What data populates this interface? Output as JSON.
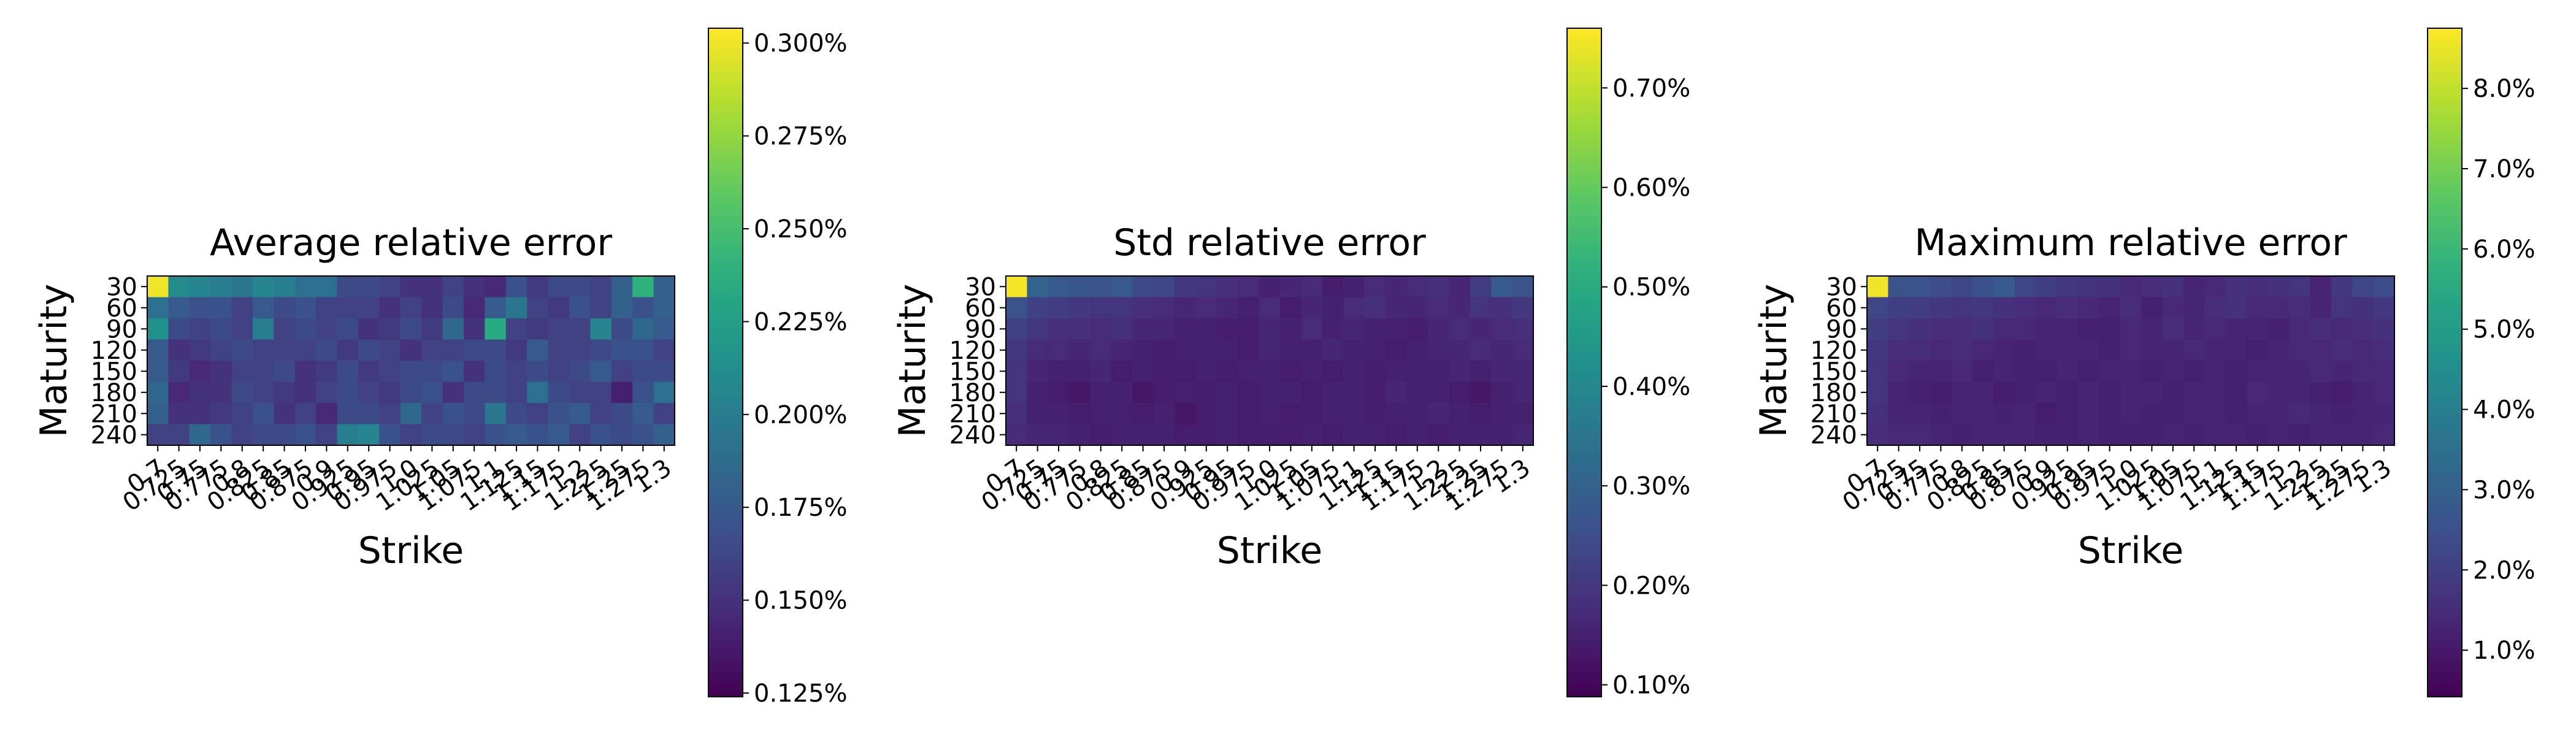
{
  "chart_data": [
    {
      "type": "heatmap",
      "title": "Average relative error",
      "xlabel": "Strike",
      "ylabel": "Maturity",
      "x_categories": [
        "0.7",
        "0.725",
        "0.75",
        "0.775",
        "0.8",
        "0.825",
        "0.85",
        "0.875",
        "0.9",
        "0.925",
        "0.95",
        "0.975",
        "1.0",
        "1.025",
        "1.05",
        "1.075",
        "1.1",
        "1.125",
        "1.15",
        "1.175",
        "1.2",
        "1.225",
        "1.25",
        "1.275",
        "1.3"
      ],
      "y_categories": [
        "30",
        "60",
        "90",
        "120",
        "150",
        "180",
        "210",
        "240"
      ],
      "colormap": "viridis",
      "vmin": 0.00124,
      "vmax": 0.00304,
      "colorbar_ticks": [
        0.00125,
        0.0015,
        0.00175,
        0.002,
        0.00225,
        0.0025,
        0.00275,
        0.003
      ],
      "colorbar_ticklabels": [
        "0.125%",
        "0.150%",
        "0.175%",
        "0.200%",
        "0.225%",
        "0.250%",
        "0.275%",
        "0.300%"
      ],
      "values": [
        [
          0.003,
          0.0021,
          0.00205,
          0.002,
          0.00195,
          0.00205,
          0.002,
          0.0019,
          0.0019,
          0.00165,
          0.00165,
          0.0016,
          0.0015,
          0.0015,
          0.0016,
          0.0015,
          0.00145,
          0.0017,
          0.00155,
          0.00165,
          0.00165,
          0.0016,
          0.0018,
          0.0024,
          0.0018
        ],
        [
          0.0019,
          0.00175,
          0.0017,
          0.0017,
          0.0016,
          0.00175,
          0.00165,
          0.0017,
          0.0016,
          0.0016,
          0.0016,
          0.0015,
          0.0016,
          0.0015,
          0.00165,
          0.00145,
          0.00175,
          0.00195,
          0.0016,
          0.00155,
          0.0017,
          0.0016,
          0.0018,
          0.0017,
          0.0018
        ],
        [
          0.00215,
          0.00165,
          0.0016,
          0.00165,
          0.0016,
          0.002,
          0.0016,
          0.00165,
          0.0016,
          0.00165,
          0.0015,
          0.00155,
          0.00165,
          0.00155,
          0.00185,
          0.0015,
          0.00235,
          0.0016,
          0.00155,
          0.0016,
          0.0016,
          0.00205,
          0.00165,
          0.00185,
          0.00175
        ],
        [
          0.00175,
          0.0015,
          0.00155,
          0.0016,
          0.00165,
          0.0016,
          0.0016,
          0.0016,
          0.00165,
          0.00155,
          0.00165,
          0.0016,
          0.0015,
          0.0016,
          0.0016,
          0.00165,
          0.00165,
          0.00155,
          0.00175,
          0.0016,
          0.0016,
          0.00165,
          0.0017,
          0.0017,
          0.0016
        ],
        [
          0.00175,
          0.00155,
          0.00145,
          0.0015,
          0.0016,
          0.0016,
          0.00165,
          0.0015,
          0.00155,
          0.00165,
          0.00155,
          0.0016,
          0.00165,
          0.00165,
          0.0017,
          0.0015,
          0.00165,
          0.0016,
          0.00165,
          0.0016,
          0.00165,
          0.00175,
          0.0016,
          0.00165,
          0.00165
        ],
        [
          0.00185,
          0.00145,
          0.0015,
          0.0015,
          0.00165,
          0.0016,
          0.00155,
          0.0015,
          0.0016,
          0.00165,
          0.0016,
          0.00155,
          0.00165,
          0.0017,
          0.0015,
          0.00165,
          0.00165,
          0.0016,
          0.0019,
          0.00165,
          0.0016,
          0.0016,
          0.0014,
          0.0017,
          0.0019
        ],
        [
          0.0018,
          0.0015,
          0.0015,
          0.00155,
          0.0016,
          0.0017,
          0.0015,
          0.0016,
          0.00145,
          0.00165,
          0.00165,
          0.0016,
          0.00185,
          0.0016,
          0.0017,
          0.00165,
          0.00195,
          0.00165,
          0.0016,
          0.0017,
          0.00175,
          0.0016,
          0.00165,
          0.00175,
          0.0016
        ],
        [
          0.0016,
          0.0016,
          0.00185,
          0.0017,
          0.0016,
          0.00165,
          0.00165,
          0.0017,
          0.0016,
          0.002,
          0.00205,
          0.0017,
          0.0016,
          0.00165,
          0.00165,
          0.0016,
          0.0017,
          0.00175,
          0.0017,
          0.00175,
          0.0016,
          0.0017,
          0.00165,
          0.0017,
          0.0018
        ]
      ]
    },
    {
      "type": "heatmap",
      "title": "Std relative error",
      "xlabel": "Strike",
      "ylabel": "Maturity",
      "x_categories": [
        "0.7",
        "0.725",
        "0.75",
        "0.775",
        "0.8",
        "0.825",
        "0.85",
        "0.875",
        "0.9",
        "0.925",
        "0.95",
        "0.975",
        "1.0",
        "1.025",
        "1.05",
        "1.075",
        "1.1",
        "1.125",
        "1.15",
        "1.175",
        "1.2",
        "1.225",
        "1.25",
        "1.275",
        "1.3"
      ],
      "y_categories": [
        "30",
        "60",
        "90",
        "120",
        "150",
        "180",
        "210",
        "240"
      ],
      "colormap": "viridis",
      "vmin": 0.00088,
      "vmax": 0.0076,
      "colorbar_ticks": [
        0.001,
        0.002,
        0.003,
        0.004,
        0.005,
        0.006,
        0.007
      ],
      "colorbar_ticklabels": [
        "0.10%",
        "0.20%",
        "0.30%",
        "0.40%",
        "0.50%",
        "0.60%",
        "0.70%"
      ],
      "values": [
        [
          0.0075,
          0.003,
          0.0028,
          0.0027,
          0.0026,
          0.0028,
          0.0024,
          0.0023,
          0.002,
          0.0019,
          0.0018,
          0.0017,
          0.0015,
          0.0016,
          0.0017,
          0.0014,
          0.0015,
          0.0017,
          0.0016,
          0.0017,
          0.0018,
          0.0016,
          0.0021,
          0.0028,
          0.0026
        ],
        [
          0.0026,
          0.0022,
          0.0021,
          0.002,
          0.0019,
          0.0019,
          0.0018,
          0.0017,
          0.0016,
          0.0017,
          0.0016,
          0.0015,
          0.0017,
          0.0014,
          0.0016,
          0.0015,
          0.0017,
          0.0018,
          0.0016,
          0.0016,
          0.0017,
          0.0016,
          0.0019,
          0.0018,
          0.002
        ],
        [
          0.0022,
          0.002,
          0.0018,
          0.0018,
          0.0017,
          0.0018,
          0.0016,
          0.0016,
          0.0015,
          0.0015,
          0.0014,
          0.0014,
          0.0016,
          0.0015,
          0.0017,
          0.0015,
          0.0016,
          0.0015,
          0.0015,
          0.0014,
          0.0016,
          0.0017,
          0.0016,
          0.0017,
          0.0018
        ],
        [
          0.002,
          0.0017,
          0.0017,
          0.0016,
          0.0017,
          0.0016,
          0.0015,
          0.0014,
          0.0015,
          0.0015,
          0.0015,
          0.0014,
          0.0016,
          0.0015,
          0.0015,
          0.0016,
          0.0015,
          0.0015,
          0.0014,
          0.0015,
          0.0016,
          0.0016,
          0.0017,
          0.0016,
          0.0017
        ],
        [
          0.0019,
          0.0016,
          0.0015,
          0.0015,
          0.0016,
          0.0014,
          0.0015,
          0.0014,
          0.0014,
          0.0015,
          0.0014,
          0.0015,
          0.0015,
          0.0014,
          0.0015,
          0.0014,
          0.0015,
          0.0014,
          0.0015,
          0.0015,
          0.0015,
          0.0016,
          0.0015,
          0.0016,
          0.0016
        ],
        [
          0.0019,
          0.0015,
          0.0014,
          0.0013,
          0.0015,
          0.0015,
          0.0013,
          0.0014,
          0.0015,
          0.0014,
          0.0015,
          0.0014,
          0.0015,
          0.0015,
          0.0014,
          0.0015,
          0.0015,
          0.0014,
          0.0016,
          0.0015,
          0.0015,
          0.0014,
          0.0013,
          0.0015,
          0.0016
        ],
        [
          0.0018,
          0.0015,
          0.0015,
          0.0014,
          0.0015,
          0.0015,
          0.0014,
          0.0015,
          0.0013,
          0.0014,
          0.0015,
          0.0014,
          0.0015,
          0.0014,
          0.0014,
          0.0015,
          0.0015,
          0.0014,
          0.0015,
          0.0015,
          0.0016,
          0.0015,
          0.0014,
          0.0015,
          0.0015
        ],
        [
          0.0017,
          0.0016,
          0.0016,
          0.0015,
          0.0014,
          0.0015,
          0.0015,
          0.0015,
          0.0014,
          0.0014,
          0.0015,
          0.0014,
          0.0014,
          0.0014,
          0.0015,
          0.0014,
          0.0015,
          0.0015,
          0.0014,
          0.0015,
          0.0014,
          0.0015,
          0.0015,
          0.0015,
          0.0016
        ]
      ]
    },
    {
      "type": "heatmap",
      "title": "Maximum relative error",
      "xlabel": "Strike",
      "ylabel": "Maturity",
      "x_categories": [
        "0.7",
        "0.725",
        "0.75",
        "0.775",
        "0.8",
        "0.825",
        "0.85",
        "0.875",
        "0.9",
        "0.925",
        "0.95",
        "0.975",
        "1.0",
        "1.025",
        "1.05",
        "1.075",
        "1.1",
        "1.125",
        "1.15",
        "1.175",
        "1.2",
        "1.225",
        "1.25",
        "1.275",
        "1.3"
      ],
      "y_categories": [
        "30",
        "60",
        "90",
        "120",
        "150",
        "180",
        "210",
        "240"
      ],
      "colormap": "viridis",
      "vmin": 0.0042,
      "vmax": 0.0875,
      "colorbar_ticks": [
        0.01,
        0.02,
        0.03,
        0.04,
        0.05,
        0.06,
        0.07,
        0.08
      ],
      "colorbar_ticklabels": [
        "1.0%",
        "2.0%",
        "3.0%",
        "4.0%",
        "5.0%",
        "6.0%",
        "7.0%",
        "8.0%"
      ],
      "values": [
        [
          0.086,
          0.026,
          0.026,
          0.024,
          0.022,
          0.025,
          0.028,
          0.022,
          0.02,
          0.018,
          0.017,
          0.016,
          0.014,
          0.015,
          0.016,
          0.013,
          0.014,
          0.016,
          0.015,
          0.016,
          0.017,
          0.013,
          0.018,
          0.022,
          0.024
        ],
        [
          0.022,
          0.02,
          0.019,
          0.018,
          0.017,
          0.018,
          0.016,
          0.015,
          0.014,
          0.015,
          0.014,
          0.013,
          0.015,
          0.012,
          0.014,
          0.013,
          0.015,
          0.016,
          0.014,
          0.014,
          0.015,
          0.013,
          0.017,
          0.016,
          0.018
        ],
        [
          0.019,
          0.017,
          0.016,
          0.015,
          0.015,
          0.016,
          0.014,
          0.014,
          0.013,
          0.013,
          0.012,
          0.012,
          0.014,
          0.013,
          0.015,
          0.013,
          0.014,
          0.013,
          0.013,
          0.012,
          0.014,
          0.015,
          0.014,
          0.015,
          0.016
        ],
        [
          0.018,
          0.015,
          0.015,
          0.014,
          0.015,
          0.014,
          0.013,
          0.012,
          0.013,
          0.013,
          0.013,
          0.012,
          0.014,
          0.013,
          0.013,
          0.014,
          0.013,
          0.013,
          0.012,
          0.013,
          0.014,
          0.014,
          0.015,
          0.014,
          0.015
        ],
        [
          0.017,
          0.014,
          0.013,
          0.013,
          0.014,
          0.012,
          0.013,
          0.012,
          0.012,
          0.013,
          0.012,
          0.013,
          0.013,
          0.012,
          0.013,
          0.012,
          0.013,
          0.012,
          0.013,
          0.013,
          0.013,
          0.014,
          0.013,
          0.014,
          0.014
        ],
        [
          0.017,
          0.013,
          0.012,
          0.011,
          0.013,
          0.013,
          0.011,
          0.012,
          0.013,
          0.012,
          0.013,
          0.012,
          0.013,
          0.013,
          0.012,
          0.013,
          0.013,
          0.012,
          0.014,
          0.013,
          0.013,
          0.012,
          0.011,
          0.013,
          0.014
        ],
        [
          0.016,
          0.013,
          0.013,
          0.012,
          0.013,
          0.013,
          0.012,
          0.013,
          0.011,
          0.012,
          0.013,
          0.012,
          0.013,
          0.012,
          0.012,
          0.013,
          0.013,
          0.012,
          0.013,
          0.013,
          0.014,
          0.013,
          0.012,
          0.013,
          0.013
        ],
        [
          0.015,
          0.014,
          0.014,
          0.013,
          0.012,
          0.013,
          0.013,
          0.013,
          0.012,
          0.012,
          0.013,
          0.012,
          0.012,
          0.012,
          0.013,
          0.012,
          0.013,
          0.013,
          0.012,
          0.013,
          0.012,
          0.013,
          0.013,
          0.013,
          0.014
        ]
      ]
    }
  ]
}
